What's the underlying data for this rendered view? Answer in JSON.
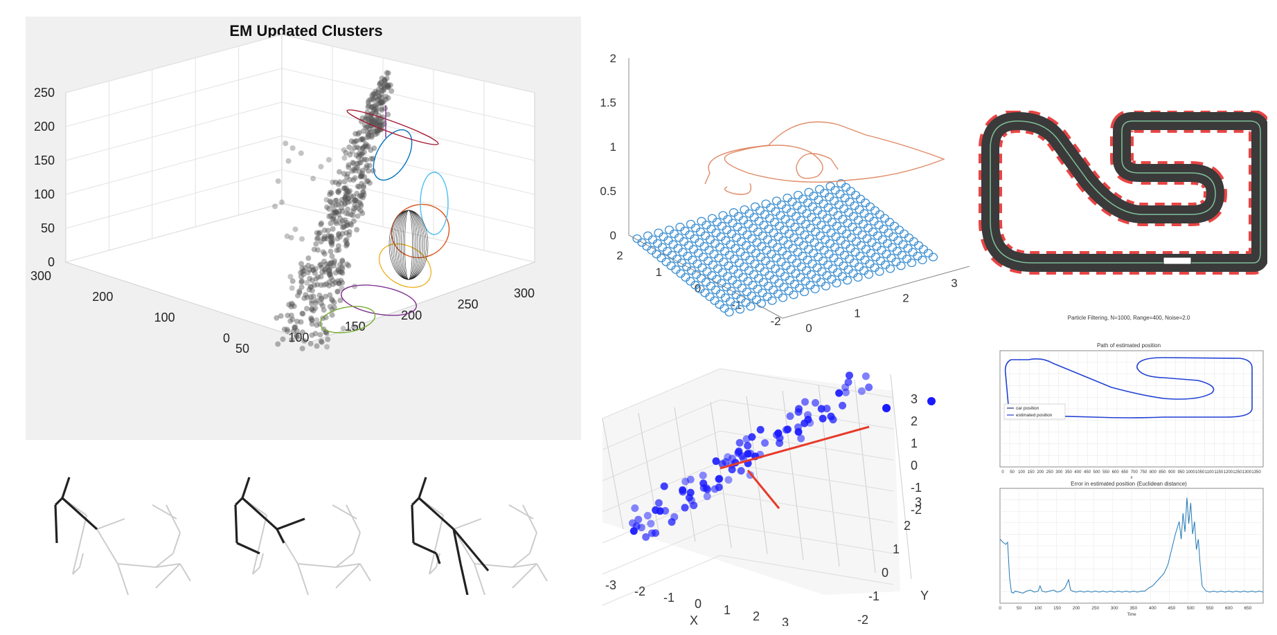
{
  "chart_data": [
    {
      "type": "scatter",
      "title": "EM Updated Clusters",
      "projection": "3d",
      "background": "#f0f0f0",
      "z_ticks": [
        "0",
        "50",
        "100",
        "150",
        "200",
        "250"
      ],
      "y_ticks": [
        "0",
        "100",
        "200",
        "300"
      ],
      "x_ticks": [
        "50",
        "100",
        "150",
        "200",
        "250",
        "300"
      ],
      "grid": true,
      "point_color": "#555555",
      "ellipse_colors": [
        "#0072bd",
        "#d95319",
        "#edb120",
        "#7e2f8e",
        "#77ac30",
        "#4dbeee",
        "#a2142f"
      ]
    },
    {
      "type": "line",
      "projection": "3d",
      "series": [
        {
          "color": "#e08a66"
        },
        {
          "color": "#3d8fd1"
        }
      ],
      "z_ticks": [
        "0",
        "0.5",
        "1",
        "1.5",
        "2"
      ],
      "y_ticks": [
        "-2",
        "-1",
        "0",
        "1",
        "2"
      ],
      "x_ticks": [
        "0",
        "1",
        "2",
        "3"
      ],
      "grid": false
    },
    {
      "type": "scatter",
      "projection": "3d",
      "x_ticks": [
        "-3",
        "-2",
        "-1",
        "0",
        "1",
        "2",
        "3"
      ],
      "y_ticks": [
        "-2",
        "-1",
        "0",
        "1",
        "2",
        "3"
      ],
      "z_ticks": [
        "-2",
        "-1",
        "0",
        "1",
        "2",
        "3"
      ],
      "xlabel": "X",
      "ylabel": "Y",
      "point_color": "#1a1aff",
      "line_color": "#e83a2a",
      "grid": true
    },
    {
      "type": "line",
      "suptitle": "Particle Filtering, N=1000, Range=400, Noise=2.0",
      "title": "Path of estimated position",
      "x_ticks": [
        "0",
        "50",
        "100",
        "150",
        "200",
        "250",
        "300",
        "350",
        "400",
        "450",
        "500",
        "550",
        "600",
        "650",
        "700",
        "750",
        "800",
        "850",
        "900",
        "950",
        "1000",
        "1050",
        "1100",
        "1150",
        "1200",
        "1250",
        "1300",
        "1350"
      ],
      "xlabel": "x",
      "legend": [
        "car position",
        "estimated position"
      ],
      "legend_position": "middle-left",
      "series": [
        {
          "name": "car position",
          "color": "#1f2a6b"
        },
        {
          "name": "estimated position",
          "color": "#1f3fd4"
        }
      ],
      "grid": true
    },
    {
      "type": "line",
      "title": "Error in estimated position (Euclidean distance)",
      "xlabel": "Time",
      "x_ticks": [
        "0",
        "50",
        "100",
        "150",
        "200",
        "250",
        "300",
        "350",
        "400",
        "450",
        "500",
        "550",
        "600",
        "650"
      ],
      "xlim": [
        0,
        690
      ],
      "series": [
        {
          "color": "#1f77b4",
          "x": [
            0,
            8,
            15,
            20,
            25,
            30,
            35,
            40,
            50,
            60,
            70,
            80,
            90,
            100,
            105,
            110,
            120,
            130,
            140,
            150,
            160,
            170,
            175,
            180,
            185,
            190,
            200,
            210,
            220,
            230,
            240,
            250,
            260,
            270,
            280,
            290,
            300,
            310,
            320,
            330,
            340,
            350,
            360,
            370,
            380,
            390,
            400,
            410,
            420,
            430,
            440,
            450,
            460,
            470,
            475,
            480,
            485,
            490,
            495,
            500,
            505,
            510,
            515,
            520,
            525,
            530,
            540,
            550,
            560,
            570,
            580,
            590,
            600,
            610,
            620,
            630,
            640,
            650,
            660,
            670,
            680,
            690
          ],
          "y": [
            0.55,
            0.52,
            0.5,
            0.52,
            0.18,
            0.04,
            0.03,
            0.05,
            0.04,
            0.03,
            0.05,
            0.06,
            0.04,
            0.05,
            0.1,
            0.05,
            0.04,
            0.05,
            0.06,
            0.04,
            0.05,
            0.08,
            0.12,
            0.16,
            0.06,
            0.05,
            0.04,
            0.05,
            0.04,
            0.05,
            0.04,
            0.05,
            0.04,
            0.05,
            0.04,
            0.05,
            0.04,
            0.05,
            0.04,
            0.05,
            0.04,
            0.05,
            0.04,
            0.05,
            0.05,
            0.08,
            0.1,
            0.14,
            0.18,
            0.22,
            0.3,
            0.45,
            0.6,
            0.72,
            0.55,
            0.8,
            0.62,
            0.95,
            0.7,
            0.9,
            0.6,
            0.72,
            0.45,
            0.55,
            0.3,
            0.1,
            0.05,
            0.04,
            0.05,
            0.04,
            0.05,
            0.04,
            0.05,
            0.04,
            0.05,
            0.04,
            0.05,
            0.04,
            0.05,
            0.04,
            0.05,
            0.04
          ]
        }
      ],
      "grid": true
    }
  ]
}
